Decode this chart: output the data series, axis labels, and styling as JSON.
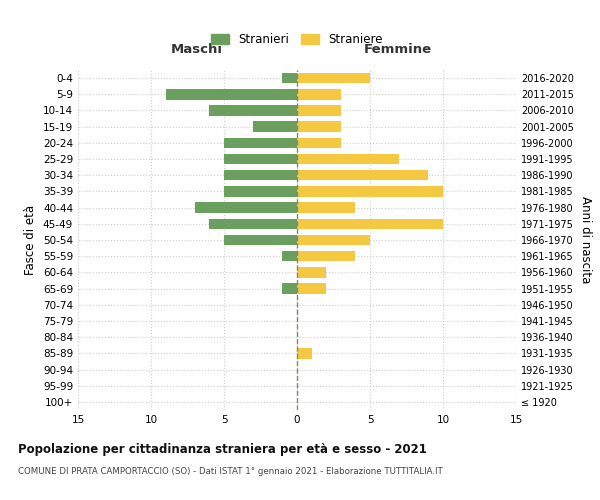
{
  "age_groups": [
    "100+",
    "95-99",
    "90-94",
    "85-89",
    "80-84",
    "75-79",
    "70-74",
    "65-69",
    "60-64",
    "55-59",
    "50-54",
    "45-49",
    "40-44",
    "35-39",
    "30-34",
    "25-29",
    "20-24",
    "15-19",
    "10-14",
    "5-9",
    "0-4"
  ],
  "birth_years": [
    "≤ 1920",
    "1921-1925",
    "1926-1930",
    "1931-1935",
    "1936-1940",
    "1941-1945",
    "1946-1950",
    "1951-1955",
    "1956-1960",
    "1961-1965",
    "1966-1970",
    "1971-1975",
    "1976-1980",
    "1981-1985",
    "1986-1990",
    "1991-1995",
    "1996-2000",
    "2001-2005",
    "2006-2010",
    "2011-2015",
    "2016-2020"
  ],
  "males": [
    0,
    0,
    0,
    0,
    0,
    0,
    0,
    1,
    0,
    1,
    5,
    6,
    7,
    5,
    5,
    5,
    5,
    3,
    6,
    9,
    1
  ],
  "females": [
    0,
    0,
    0,
    1,
    0,
    0,
    0,
    2,
    2,
    4,
    5,
    10,
    4,
    10,
    9,
    7,
    3,
    3,
    3,
    3,
    5
  ],
  "male_color": "#6a9f5e",
  "female_color": "#f5c842",
  "background_color": "#ffffff",
  "grid_color": "#cccccc",
  "center_line_color": "#888866",
  "title": "Popolazione per cittadinanza straniera per età e sesso - 2021",
  "subtitle": "COMUNE DI PRATA CAMPORTACCIO (SO) - Dati ISTAT 1° gennaio 2021 - Elaborazione TUTTITALIA.IT",
  "xlabel_left": "Maschi",
  "xlabel_right": "Femmine",
  "ylabel_left": "Fasce di età",
  "ylabel_right": "Anni di nascita",
  "legend_male": "Stranieri",
  "legend_female": "Straniere",
  "xlim": 15
}
